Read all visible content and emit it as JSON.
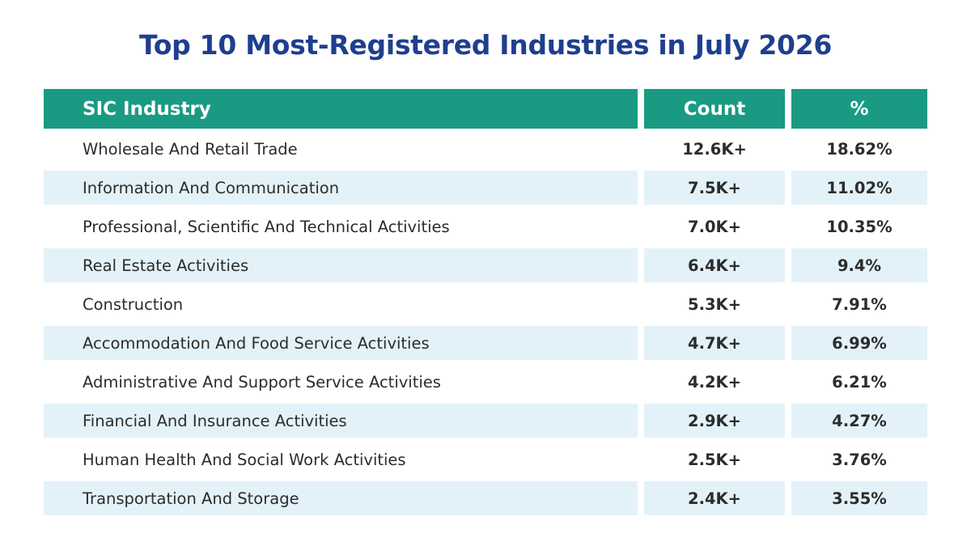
{
  "title": "Top 10 Most-Registered Industries in July 2026",
  "colors": {
    "title": "#1f3f8e",
    "header_bg": "#1a9a82",
    "header_text": "#ffffff",
    "row_shade": "#e3f2f9",
    "body_text": "#2c2c2c"
  },
  "chart_data": {
    "type": "table",
    "title": "Top 10 Most-Registered Industries in July 2026",
    "columns": [
      "SIC Industry",
      "Count",
      "%"
    ],
    "rows": [
      {
        "industry": "Wholesale And Retail Trade",
        "count": "12.6K+",
        "percent": "18.62%"
      },
      {
        "industry": "Information And Communication",
        "count": "7.5K+",
        "percent": "11.02%"
      },
      {
        "industry": "Professional, Scientific And Technical Activities",
        "count": "7.0K+",
        "percent": "10.35%"
      },
      {
        "industry": "Real Estate Activities",
        "count": "6.4K+",
        "percent": "9.4%"
      },
      {
        "industry": "Construction",
        "count": "5.3K+",
        "percent": "7.91%"
      },
      {
        "industry": "Accommodation And Food Service Activities",
        "count": "4.7K+",
        "percent": "6.99%"
      },
      {
        "industry": "Administrative And Support Service Activities",
        "count": "4.2K+",
        "percent": "6.21%"
      },
      {
        "industry": "Financial And Insurance Activities",
        "count": "2.9K+",
        "percent": "4.27%"
      },
      {
        "industry": "Human Health And Social Work Activities",
        "count": "2.5K+",
        "percent": "3.76%"
      },
      {
        "industry": "Transportation And Storage",
        "count": "2.4K+",
        "percent": "3.55%"
      }
    ]
  }
}
